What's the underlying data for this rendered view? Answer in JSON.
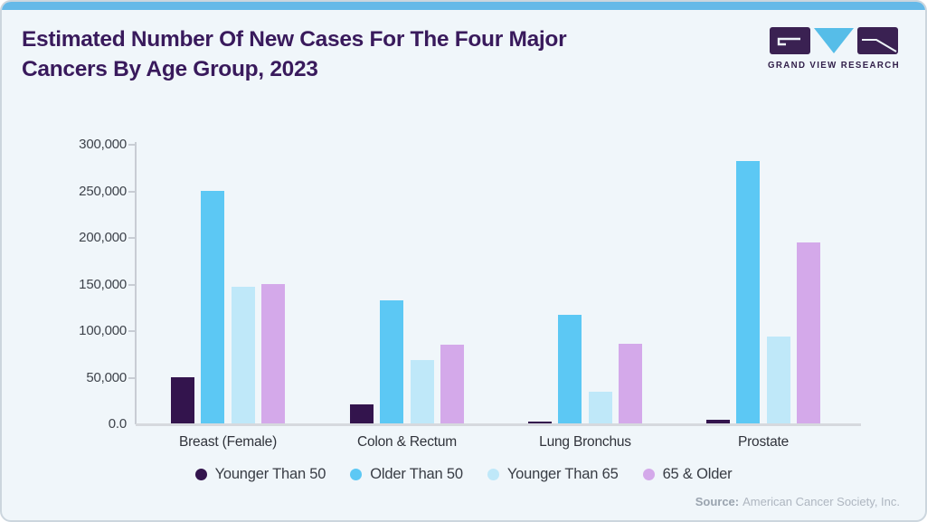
{
  "header": {
    "title_line1": "Estimated Number Of New Cases For The Four Major",
    "title_line2": "Cancers By Age Group, 2023"
  },
  "logo": {
    "name": "GRAND VIEW RESEARCH"
  },
  "colors": {
    "accent_bar": "#65b9e8",
    "card_background": "#f0f6fa",
    "title_text": "#391a5c",
    "axis_line": "#c8cdd4",
    "axis_text": "#3e434b"
  },
  "chart_data": {
    "type": "bar",
    "title": "Estimated Number Of New Cases For The Four Major Cancers By Age Group, 2023",
    "categories": [
      "Breast (Female)",
      "Colon & Rectum",
      "Lung Bronchus",
      "Prostate"
    ],
    "series": [
      {
        "name": "Younger Than 50",
        "color": "#33144d",
        "values": [
          50000,
          21000,
          3000,
          5000
        ]
      },
      {
        "name": "Older Than 50",
        "color": "#5cc8f4",
        "values": [
          250000,
          133000,
          117000,
          283000
        ]
      },
      {
        "name": "Younger Than 65",
        "color": "#bfe8f9",
        "values": [
          148000,
          69000,
          35000,
          94000
        ]
      },
      {
        "name": "65 & Older",
        "color": "#d4a9ea",
        "values": [
          150000,
          85000,
          86000,
          195000
        ]
      }
    ],
    "xlabel": "",
    "ylabel": "",
    "ylim": [
      0,
      300000
    ],
    "ytick_values": [
      300000,
      250000,
      200000,
      150000,
      100000,
      50000,
      0
    ],
    "ytick_labels": [
      "300,000",
      "250,000",
      "200,000",
      "150,000",
      "100,000",
      "50,000",
      "0.0"
    ],
    "grid": false,
    "legend_position": "bottom"
  },
  "source": {
    "label": "Source:",
    "text": "American Cancer Society, Inc."
  }
}
